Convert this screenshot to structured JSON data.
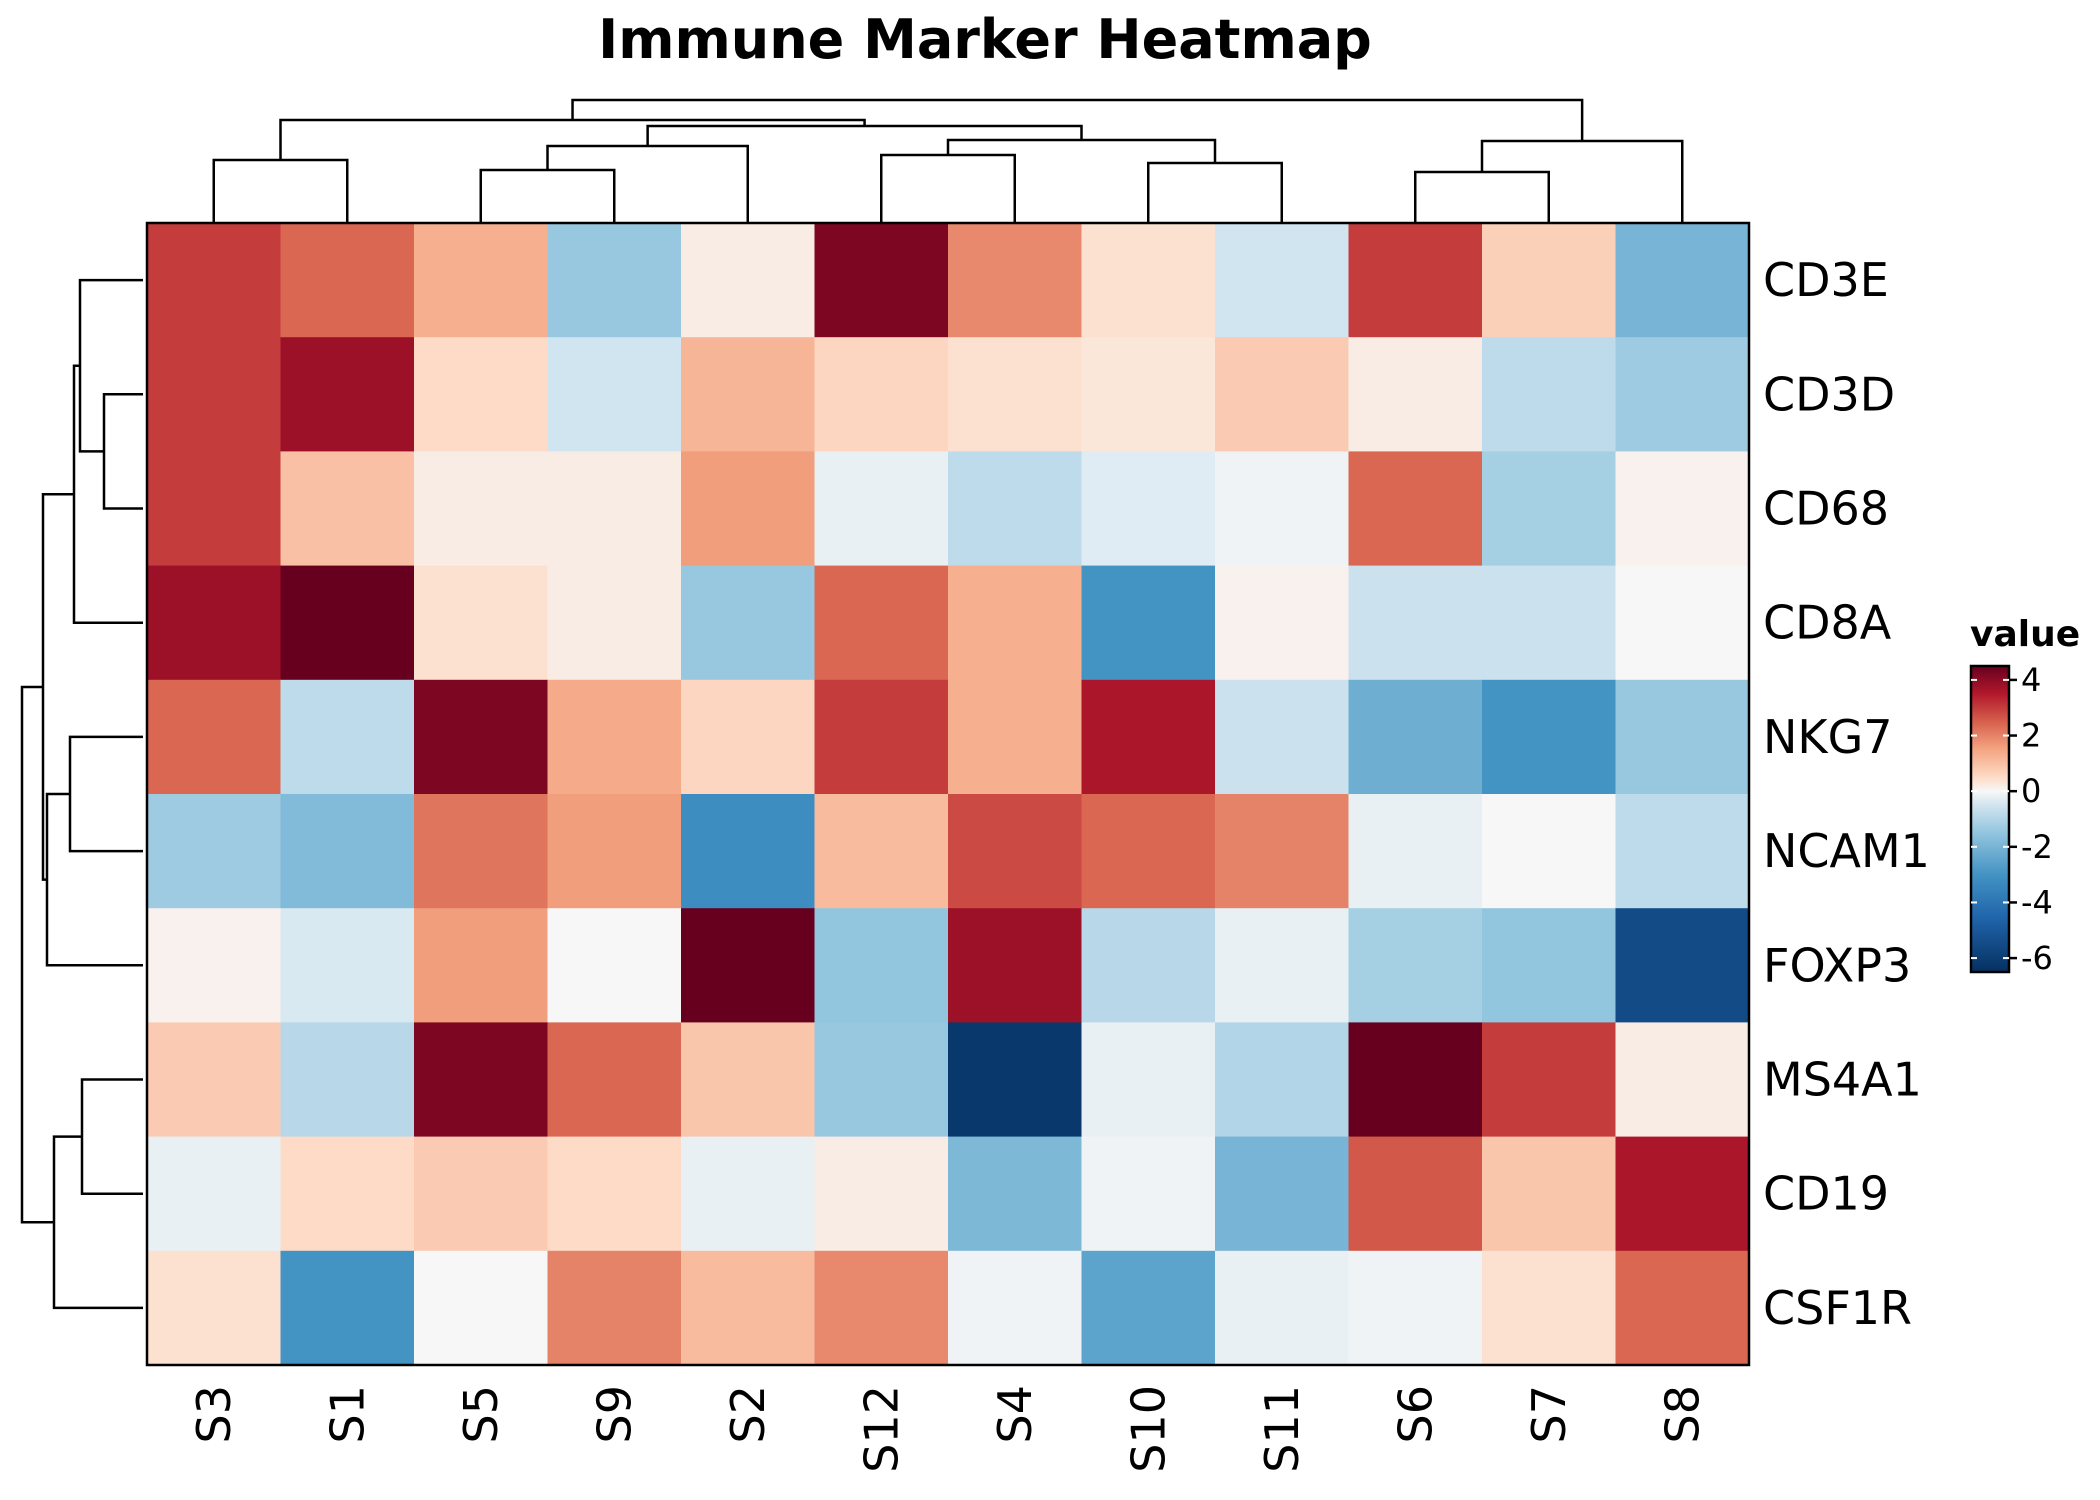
{
  "chart_data": {
    "type": "heatmap",
    "title": "Immune Marker Heatmap",
    "columns": [
      "S3",
      "S1",
      "S5",
      "S9",
      "S2",
      "S12",
      "S4",
      "S10",
      "S11",
      "S6",
      "S7",
      "S8"
    ],
    "rows": [
      "CD3E",
      "CD3D",
      "CD68",
      "CD8A",
      "NKG7",
      "NCAM1",
      "FOXP3",
      "MS4A1",
      "CD19",
      "CSF1R"
    ],
    "values": [
      [
        3.0,
        2.4,
        1.3,
        -1.4,
        0.2,
        4.2,
        1.9,
        0.4,
        -0.5,
        3.0,
        0.7,
        -2.0
      ],
      [
        3.0,
        3.8,
        0.5,
        -0.5,
        1.2,
        0.6,
        0.4,
        0.3,
        0.8,
        0.2,
        -0.8,
        -1.3
      ],
      [
        3.0,
        1.0,
        0.2,
        0.2,
        1.6,
        -0.2,
        -0.8,
        -0.3,
        -0.1,
        2.4,
        -1.2,
        0.1
      ],
      [
        3.8,
        5.5,
        0.4,
        0.2,
        -1.4,
        2.4,
        1.3,
        -3.0,
        0.1,
        -0.6,
        -0.6,
        0.0
      ],
      [
        2.4,
        -0.8,
        4.2,
        1.4,
        0.6,
        3.0,
        1.3,
        3.6,
        -0.6,
        -2.2,
        -3.0,
        -1.4
      ],
      [
        -1.3,
        -1.8,
        2.2,
        1.6,
        -3.2,
        1.1,
        2.8,
        2.4,
        2.0,
        -0.2,
        0.0,
        -0.8
      ],
      [
        0.1,
        -0.4,
        1.6,
        0.0,
        6.0,
        -1.5,
        3.8,
        -0.9,
        -0.2,
        -1.2,
        -1.5,
        -5.5
      ],
      [
        0.8,
        -0.9,
        4.2,
        2.4,
        0.9,
        -1.4,
        -6.2,
        -0.2,
        -1.0,
        6.0,
        3.0,
        0.2
      ],
      [
        -0.2,
        0.5,
        0.8,
        0.5,
        -0.2,
        0.2,
        -1.9,
        -0.1,
        -2.0,
        2.6,
        0.9,
        3.6
      ],
      [
        0.4,
        -3.0,
        0.0,
        2.0,
        1.1,
        1.9,
        -0.1,
        -2.5,
        -0.2,
        -0.1,
        0.4,
        2.4
      ]
    ],
    "color_scale": {
      "min": -6.5,
      "max": 4.5,
      "stops": [
        {
          "value": -6.5,
          "color": "#053061"
        },
        {
          "value": -4.5,
          "color": "#2166ac"
        },
        {
          "value": -3.0,
          "color": "#4393c3"
        },
        {
          "value": -1.5,
          "color": "#92c5de"
        },
        {
          "value": -0.5,
          "color": "#d1e5f0"
        },
        {
          "value": 0.0,
          "color": "#f7f7f7"
        },
        {
          "value": 0.5,
          "color": "#fddbc7"
        },
        {
          "value": 1.5,
          "color": "#f4a582"
        },
        {
          "value": 2.5,
          "color": "#d6604d"
        },
        {
          "value": 3.5,
          "color": "#b2182b"
        },
        {
          "value": 4.5,
          "color": "#67001f"
        }
      ]
    },
    "legend": {
      "title": "value",
      "ticks": [
        4,
        2,
        0,
        -2,
        -4,
        -6
      ],
      "tick_labels": [
        "4",
        "2",
        "0",
        "-2",
        "-4",
        "-6"
      ],
      "placement": "right"
    },
    "column_dendrogram": true,
    "row_dendrogram": true
  }
}
